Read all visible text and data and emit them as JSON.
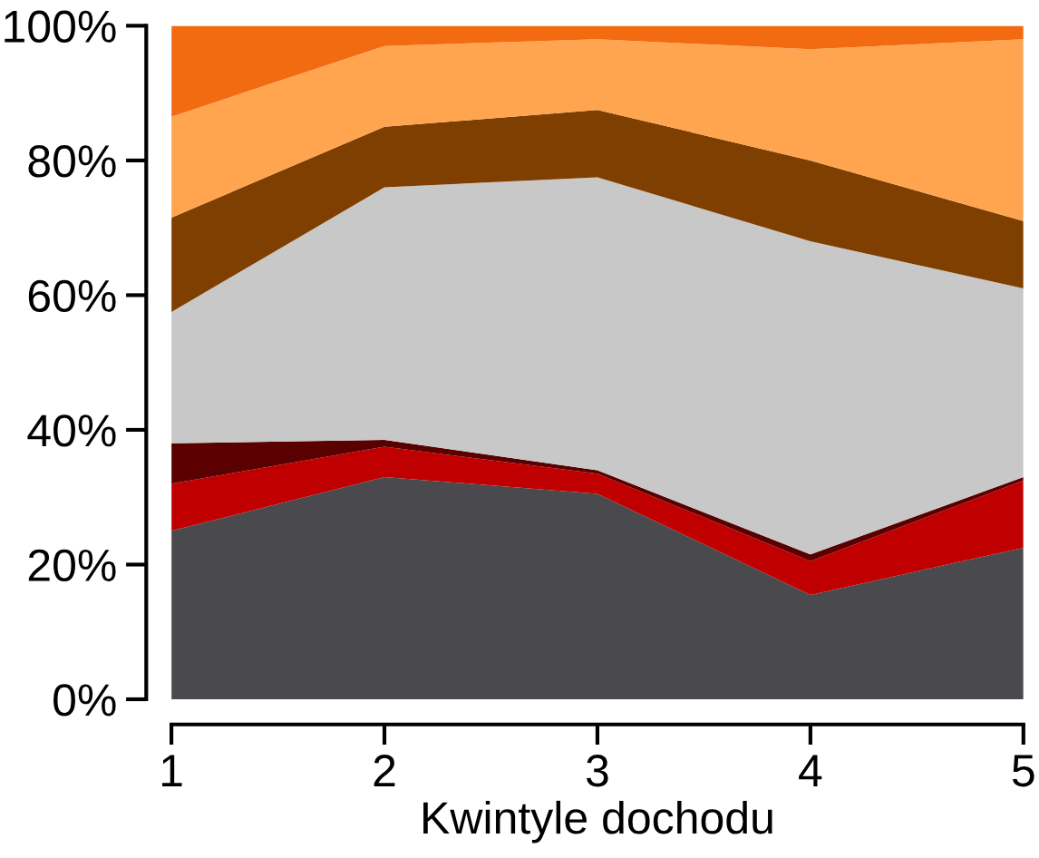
{
  "chart_data": {
    "type": "area",
    "stacked": true,
    "xlabel": "Kwintyle dochodu",
    "x": [
      1,
      2,
      3,
      4,
      5
    ],
    "series": [
      {
        "color": "#4a4a4e",
        "values": [
          25,
          33,
          30.5,
          15.5,
          22.5
        ]
      },
      {
        "color": "#c00000",
        "values": [
          7,
          4.5,
          3,
          5,
          10
        ]
      },
      {
        "color": "#5a0000",
        "values": [
          6,
          1,
          0.5,
          1,
          0.5
        ]
      },
      {
        "color": "#c8c8c8",
        "values": [
          19.5,
          37.5,
          43.5,
          46.5,
          28
        ]
      },
      {
        "color": "#7f3f00",
        "values": [
          14,
          9,
          10,
          12,
          10
        ]
      },
      {
        "color": "#ffa54f",
        "values": [
          15,
          12,
          10.5,
          16.5,
          27
        ]
      },
      {
        "color": "#f26b10",
        "values": [
          13.5,
          3,
          2,
          3.5,
          2
        ]
      }
    ],
    "xlim": [
      1,
      5
    ],
    "xticks": [
      1,
      2,
      3,
      4,
      5
    ],
    "ylim": [
      0,
      100
    ],
    "yticks": [
      {
        "value": 0,
        "label": "0%"
      },
      {
        "value": 20,
        "label": "20%"
      },
      {
        "value": 40,
        "label": "40%"
      },
      {
        "value": 60,
        "label": "60%"
      },
      {
        "value": 80,
        "label": "80%"
      },
      {
        "value": 100,
        "label": "100%"
      }
    ],
    "grid": false,
    "legend": false
  }
}
